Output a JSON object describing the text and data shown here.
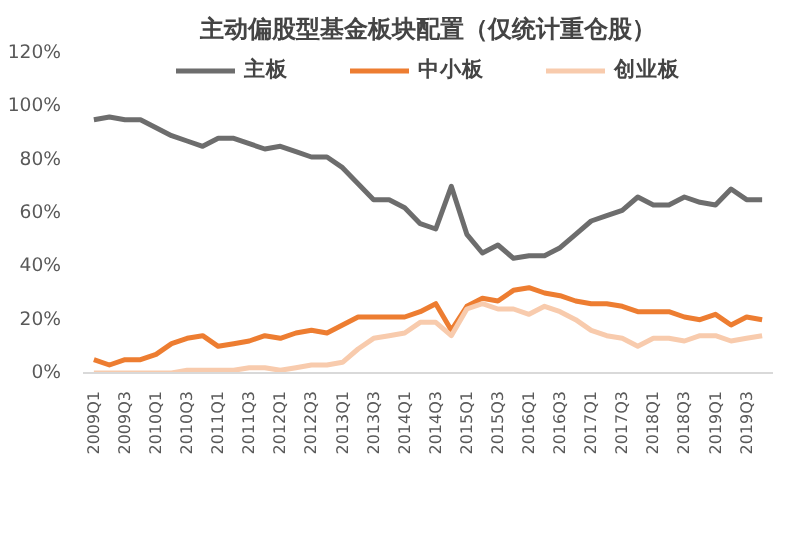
{
  "chart_data": {
    "type": "line",
    "title": "主动偏股型基金板块配置（仅统计重仓股）",
    "categories": [
      "2009Q1",
      null,
      "2009Q3",
      null,
      "2010Q1",
      null,
      "2010Q3",
      null,
      "2011Q1",
      null,
      "2011Q3",
      null,
      "2012Q1",
      null,
      "2012Q3",
      null,
      "2013Q1",
      null,
      "2013Q3",
      null,
      "2014Q1",
      null,
      "2014Q3",
      null,
      "2015Q1",
      null,
      "2015Q3",
      null,
      "2016Q1",
      null,
      "2016Q3",
      null,
      "2017Q1",
      null,
      "2017Q3",
      null,
      "2018Q1",
      null,
      "2018Q3",
      null,
      "2019Q1",
      null,
      "2019Q3",
      null
    ],
    "series": [
      {
        "name": "主板",
        "color": "#6d6d6d",
        "values": [
          95,
          96,
          95,
          95,
          92,
          89,
          87,
          85,
          88,
          88,
          86,
          84,
          85,
          83,
          81,
          81,
          77,
          71,
          65,
          65,
          62,
          56,
          54,
          70,
          52,
          45,
          48,
          43,
          44,
          44,
          47,
          52,
          57,
          59,
          61,
          66,
          63,
          63,
          66,
          64,
          63,
          69,
          65,
          65
        ]
      },
      {
        "name": "中小板",
        "color": "#ed7d31",
        "values": [
          5,
          3,
          5,
          5,
          7,
          11,
          13,
          14,
          10,
          11,
          12,
          14,
          13,
          15,
          16,
          15,
          18,
          21,
          21,
          21,
          21,
          23,
          26,
          16,
          25,
          28,
          27,
          31,
          32,
          30,
          29,
          27,
          26,
          26,
          25,
          23,
          23,
          23,
          21,
          20,
          22,
          18,
          21,
          20
        ]
      },
      {
        "name": "创业板",
        "color": "#f8cbad",
        "values": [
          0,
          0,
          0,
          0,
          0,
          0,
          1,
          1,
          1,
          1,
          2,
          2,
          1,
          2,
          3,
          3,
          4,
          9,
          13,
          14,
          15,
          19,
          19,
          14,
          24,
          26,
          24,
          24,
          22,
          25,
          23,
          20,
          16,
          14,
          13,
          10,
          13,
          13,
          12,
          14,
          14,
          12,
          13,
          14
        ]
      }
    ],
    "ylim": [
      0,
      120
    ],
    "yticks": [
      {
        "value": 0,
        "label": "0%"
      },
      {
        "value": 20,
        "label": "20%"
      },
      {
        "value": 40,
        "label": "40%"
      },
      {
        "value": 60,
        "label": "60%"
      },
      {
        "value": 80,
        "label": "80%"
      },
      {
        "value": 100,
        "label": "100%"
      },
      {
        "value": 120,
        "label": "120%"
      }
    ],
    "legend": "top"
  }
}
